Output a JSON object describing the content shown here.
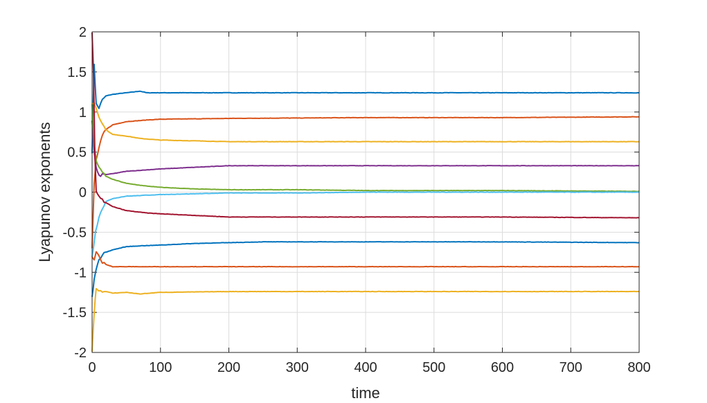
{
  "chart_data": {
    "type": "line",
    "title": "",
    "xlabel": "time",
    "ylabel": "Lyapunov exponents",
    "xlim": [
      0,
      800
    ],
    "ylim": [
      -2,
      2
    ],
    "xticks": [
      0,
      100,
      200,
      300,
      400,
      500,
      600,
      700,
      800
    ],
    "yticks": [
      -2,
      -1.5,
      -1,
      -0.5,
      0,
      0.5,
      1,
      1.5,
      2
    ],
    "xtick_labels": [
      "0",
      "100",
      "200",
      "300",
      "400",
      "500",
      "600",
      "700",
      "800"
    ],
    "ytick_labels": [
      "-2",
      "-1.5",
      "-1",
      "-0.5",
      "0",
      "0.5",
      "1",
      "1.5",
      "2"
    ],
    "grid": true,
    "series": [
      {
        "color": "#0072BD",
        "x": [
          0,
          3,
          6,
          10,
          15,
          20,
          30,
          50,
          70,
          80,
          100,
          200,
          400,
          600,
          800
        ],
        "y": [
          0.5,
          1.6,
          1.1,
          1.05,
          1.15,
          1.2,
          1.22,
          1.24,
          1.26,
          1.24,
          1.24,
          1.24,
          1.24,
          1.24,
          1.24
        ]
      },
      {
        "color": "#D95319",
        "x": [
          0,
          3,
          6,
          10,
          15,
          20,
          30,
          50,
          80,
          100,
          200,
          400,
          600,
          800
        ],
        "y": [
          -0.7,
          0.1,
          0.4,
          0.55,
          0.7,
          0.78,
          0.84,
          0.88,
          0.9,
          0.91,
          0.92,
          0.93,
          0.93,
          0.94
        ]
      },
      {
        "color": "#EDB120",
        "x": [
          0,
          3,
          6,
          10,
          15,
          20,
          30,
          50,
          70,
          100,
          200,
          300,
          400,
          600,
          800
        ],
        "y": [
          1.1,
          1.12,
          1.05,
          0.95,
          0.85,
          0.78,
          0.72,
          0.7,
          0.67,
          0.65,
          0.63,
          0.63,
          0.63,
          0.63,
          0.63
        ]
      },
      {
        "color": "#7E2F8E",
        "x": [
          0,
          3,
          6,
          10,
          15,
          20,
          30,
          50,
          100,
          150,
          200,
          300,
          400,
          600,
          800
        ],
        "y": [
          0.9,
          0.5,
          0.3,
          0.2,
          0.22,
          0.22,
          0.23,
          0.26,
          0.29,
          0.31,
          0.33,
          0.33,
          0.33,
          0.33,
          0.33
        ]
      },
      {
        "color": "#77AC30",
        "x": [
          0,
          3,
          6,
          10,
          15,
          20,
          30,
          50,
          75,
          100,
          150,
          200,
          300,
          400,
          600,
          800
        ],
        "y": [
          1.1,
          0.6,
          0.4,
          0.3,
          0.25,
          0.2,
          0.16,
          0.11,
          0.08,
          0.06,
          0.04,
          0.03,
          0.03,
          0.02,
          0.02,
          0.01
        ]
      },
      {
        "color": "#4DBEEE",
        "x": [
          0,
          5,
          10,
          15,
          20,
          30,
          50,
          100,
          150,
          200,
          300,
          400,
          600,
          800
        ],
        "y": [
          -0.8,
          -0.5,
          -0.3,
          -0.2,
          -0.12,
          -0.08,
          -0.05,
          -0.03,
          -0.02,
          -0.01,
          -0.01,
          0.0,
          0.0,
          0.0
        ]
      },
      {
        "color": "#A2142F",
        "x": [
          0,
          2,
          4,
          6,
          10,
          15,
          20,
          30,
          50,
          80,
          100,
          150,
          200,
          300,
          400,
          600,
          800
        ],
        "y": [
          2.0,
          1.5,
          0.5,
          0.0,
          -0.06,
          -0.1,
          -0.13,
          -0.18,
          -0.23,
          -0.26,
          -0.27,
          -0.29,
          -0.31,
          -0.31,
          -0.31,
          -0.31,
          -0.32
        ]
      },
      {
        "color": "#0072BD",
        "x": [
          0,
          3,
          6,
          10,
          15,
          20,
          30,
          50,
          70,
          100,
          150,
          200,
          250,
          300,
          400,
          600,
          800
        ],
        "y": [
          -1.3,
          -1.1,
          -0.95,
          -0.85,
          -0.78,
          -0.75,
          -0.72,
          -0.68,
          -0.67,
          -0.66,
          -0.64,
          -0.63,
          -0.62,
          -0.62,
          -0.62,
          -0.62,
          -0.63
        ]
      },
      {
        "color": "#D95319",
        "x": [
          0,
          3,
          6,
          10,
          15,
          20,
          30,
          50,
          100,
          200,
          400,
          600,
          800
        ],
        "y": [
          -0.8,
          -0.85,
          -0.75,
          -0.8,
          -0.88,
          -0.9,
          -0.93,
          -0.93,
          -0.93,
          -0.93,
          -0.93,
          -0.93,
          -0.93
        ]
      },
      {
        "color": "#EDB120",
        "x": [
          0,
          3,
          6,
          10,
          15,
          20,
          30,
          50,
          70,
          100,
          200,
          400,
          600,
          800
        ],
        "y": [
          -2.0,
          -1.5,
          -1.2,
          -1.22,
          -1.25,
          -1.24,
          -1.26,
          -1.25,
          -1.27,
          -1.25,
          -1.24,
          -1.24,
          -1.24,
          -1.24
        ]
      }
    ]
  }
}
